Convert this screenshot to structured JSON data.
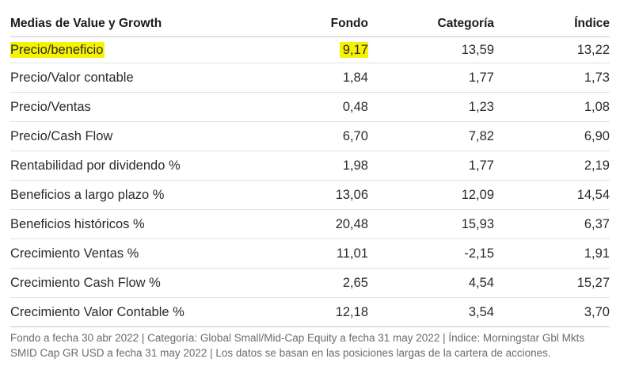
{
  "table": {
    "headers": {
      "label": "Medias de Value y Growth",
      "fondo": "Fondo",
      "categoria": "Categoría",
      "indice": "Índice"
    },
    "rows": [
      {
        "label": "Precio/beneficio",
        "fondo": "9,17",
        "categoria": "13,59",
        "indice": "13,22",
        "highlighted": true
      },
      {
        "label": "Precio/Valor contable",
        "fondo": "1,84",
        "categoria": "1,77",
        "indice": "1,73"
      },
      {
        "label": "Precio/Ventas",
        "fondo": "0,48",
        "categoria": "1,23",
        "indice": "1,08"
      },
      {
        "label": "Precio/Cash Flow",
        "fondo": "6,70",
        "categoria": "7,82",
        "indice": "6,90"
      },
      {
        "label": "Rentabilidad por dividendo %",
        "fondo": "1,98",
        "categoria": "1,77",
        "indice": "2,19"
      },
      {
        "label": "Beneficios a largo plazo %",
        "fondo": "13,06",
        "categoria": "12,09",
        "indice": "14,54"
      },
      {
        "label": "Beneficios históricos %",
        "fondo": "20,48",
        "categoria": "15,93",
        "indice": "6,37"
      },
      {
        "label": "Crecimiento Ventas %",
        "fondo": "11,01",
        "categoria": "-2,15",
        "indice": "1,91"
      },
      {
        "label": "Crecimiento Cash Flow %",
        "fondo": "2,65",
        "categoria": "4,54",
        "indice": "15,27"
      },
      {
        "label": "Crecimiento Valor Contable %",
        "fondo": "12,18",
        "categoria": "3,54",
        "indice": "3,70"
      }
    ]
  },
  "footnote": "Fondo a fecha 30 abr 2022 | Categoría: Global Small/Mid-Cap Equity a fecha 31 may 2022 | Índice: Morningstar Gbl Mkts SMID Cap GR USD a fecha 31 may 2022 | Los datos se basan en las posiciones largas de la cartera de acciones.",
  "colors": {
    "highlight": "#f7f300",
    "text": "#2a2a2a",
    "footnote": "#6b6b6b",
    "rule": "#e2e2e2"
  }
}
